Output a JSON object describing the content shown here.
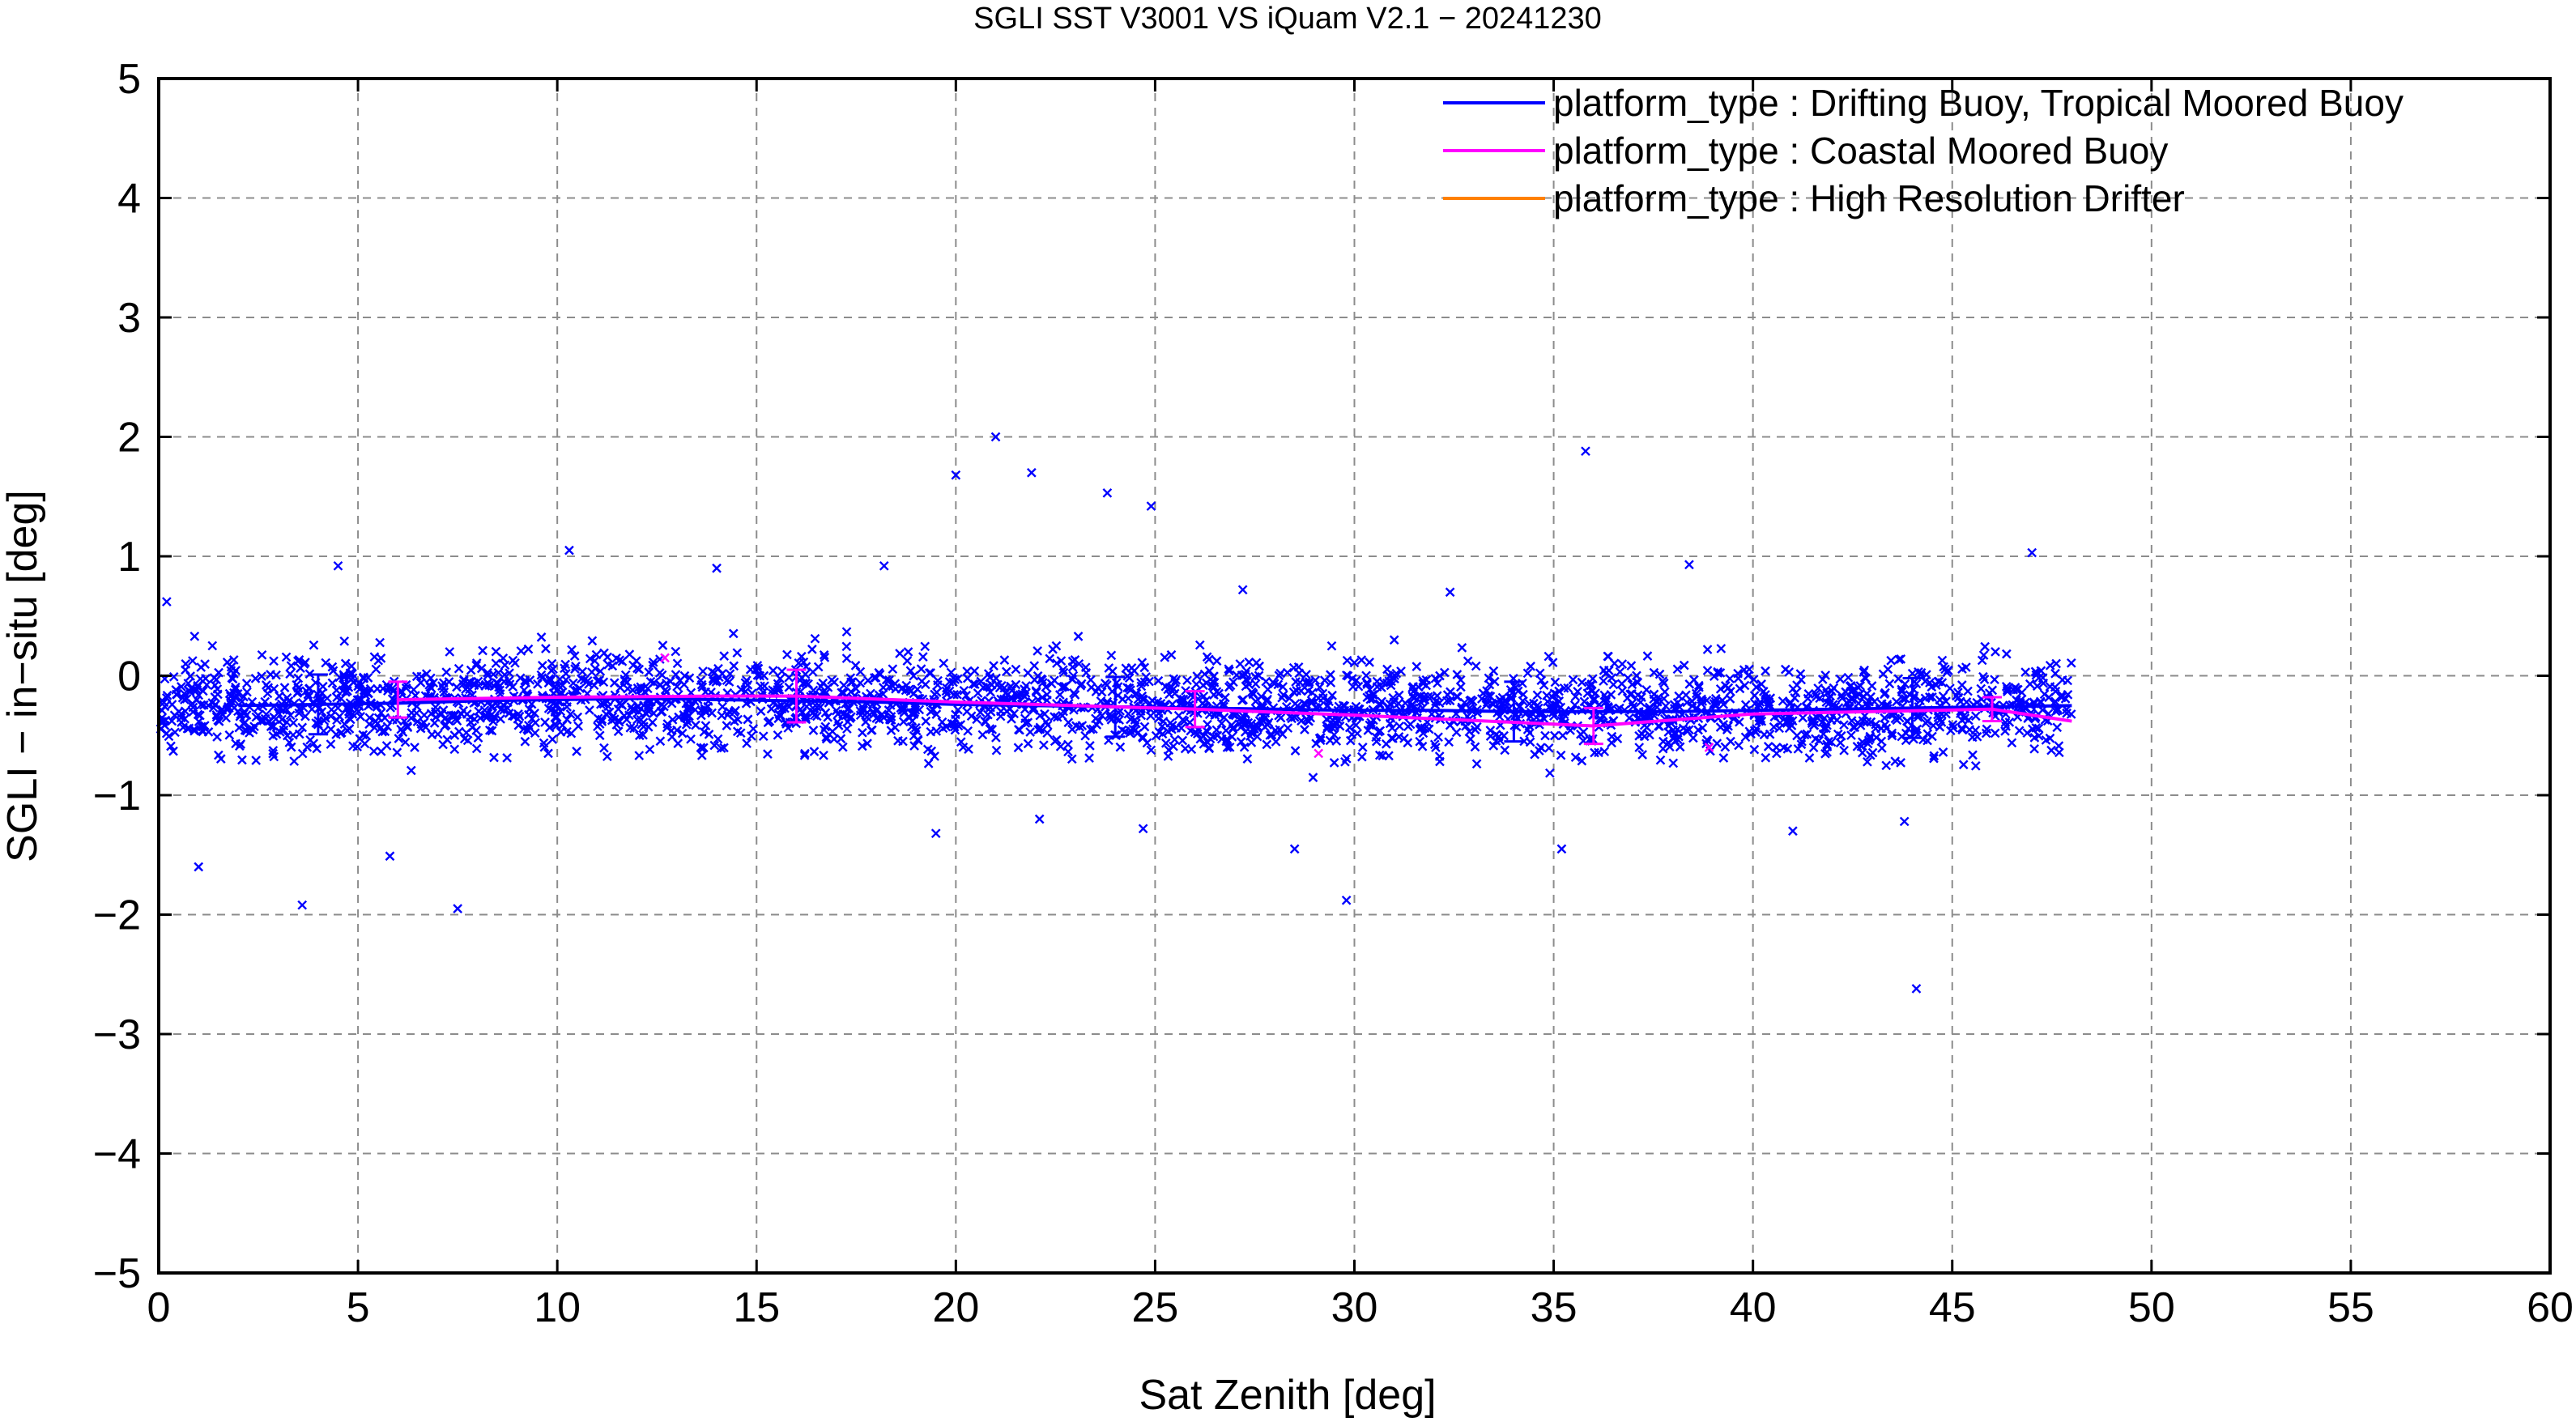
{
  "chart_data": {
    "type": "scatter",
    "title": "SGLI SST V3001 VS iQuam V2.1  − 20241230",
    "xlabel": "Sat Zenith [deg]",
    "ylabel": "SGLI − in−situ [deg]",
    "xlim": [
      0,
      60
    ],
    "ylim": [
      -5,
      5
    ],
    "xticks": [
      0,
      5,
      10,
      15,
      20,
      25,
      30,
      35,
      40,
      45,
      50,
      55,
      60
    ],
    "yticks": [
      -5,
      -4,
      -3,
      -2,
      -1,
      0,
      1,
      2,
      3,
      4,
      5
    ],
    "ytick_labels": [
      "−5",
      "−4",
      "−3",
      "−2",
      "−1",
      "0",
      "1",
      "2",
      "3",
      "4",
      "5"
    ],
    "grid": true,
    "legend_position": "top-right",
    "legend": [
      {
        "label": "platform_type : Drifting Buoy, Tropical Moored Buoy",
        "color": "#0000ff"
      },
      {
        "label": "platform_type : Coastal Moored Buoy",
        "color": "#ff00ff"
      },
      {
        "label": "platform_type : High Resolution Drifter",
        "color": "#ff8000"
      }
    ],
    "scatter_cloud": {
      "series": "platform_type : Drifting Buoy, Tropical Moored Buoy",
      "marker": "x",
      "color": "#0000ff",
      "x_range": [
        0,
        48
      ],
      "typical_y_range": [
        -0.8,
        0.4
      ],
      "approx_count": 2800
    },
    "series": [
      {
        "name": "platform_type : Drifting Buoy, Tropical Moored Buoy",
        "color": "#0000ff",
        "x": [
          2,
          4,
          6,
          8,
          10,
          12,
          14,
          16,
          18,
          20,
          22,
          24,
          26,
          28,
          30,
          32,
          34,
          36,
          38,
          40,
          42,
          44,
          46,
          48
        ],
        "y": [
          -0.25,
          -0.24,
          -0.23,
          -0.21,
          -0.2,
          -0.19,
          -0.2,
          -0.21,
          -0.22,
          -0.24,
          -0.25,
          -0.26,
          -0.27,
          -0.28,
          -0.29,
          -0.29,
          -0.3,
          -0.3,
          -0.3,
          -0.29,
          -0.28,
          -0.27,
          -0.26,
          -0.25
        ],
        "error_bars": [
          {
            "x": 4,
            "y": -0.24,
            "err": 0.25
          },
          {
            "x": 24,
            "y": -0.26,
            "err": 0.25
          },
          {
            "x": 34,
            "y": -0.3,
            "err": 0.25
          },
          {
            "x": 44,
            "y": -0.27,
            "err": 0.25
          }
        ]
      },
      {
        "name": "platform_type : Coastal Moored Buoy",
        "color": "#ff00ff",
        "x": [
          6,
          10,
          14,
          16,
          20,
          26,
          30,
          36,
          40,
          46,
          48
        ],
        "y": [
          -0.2,
          -0.18,
          -0.17,
          -0.17,
          -0.22,
          -0.28,
          -0.33,
          -0.42,
          -0.32,
          -0.28,
          -0.38
        ],
        "error_bars": [
          {
            "x": 6,
            "y": -0.2,
            "err": 0.15
          },
          {
            "x": 16,
            "y": -0.17,
            "err": 0.22
          },
          {
            "x": 26,
            "y": -0.28,
            "err": 0.15
          },
          {
            "x": 36,
            "y": -0.42,
            "err": 0.15
          },
          {
            "x": 46,
            "y": -0.28,
            "err": 0.1
          }
        ],
        "points": [
          {
            "x": 12.7,
            "y": 0.15
          },
          {
            "x": 29.1,
            "y": -0.65
          },
          {
            "x": 38.9,
            "y": -0.6
          }
        ]
      },
      {
        "name": "platform_type : High Resolution Drifter",
        "color": "#ff8000",
        "x": [],
        "y": []
      }
    ],
    "outliers": [
      {
        "x": 0.2,
        "y": 0.62
      },
      {
        "x": 0.9,
        "y": 0.33
      },
      {
        "x": 1.0,
        "y": -1.6
      },
      {
        "x": 3.6,
        "y": -1.92
      },
      {
        "x": 4.5,
        "y": 0.92
      },
      {
        "x": 5.8,
        "y": -1.51
      },
      {
        "x": 7.5,
        "y": -1.95
      },
      {
        "x": 10.3,
        "y": 1.05
      },
      {
        "x": 14.0,
        "y": 0.9
      },
      {
        "x": 18.2,
        "y": 0.92
      },
      {
        "x": 19.5,
        "y": -1.32
      },
      {
        "x": 20.0,
        "y": 1.68
      },
      {
        "x": 21.0,
        "y": 2.0
      },
      {
        "x": 21.9,
        "y": 1.7
      },
      {
        "x": 22.1,
        "y": -1.2
      },
      {
        "x": 23.8,
        "y": 1.53
      },
      {
        "x": 24.7,
        "y": -1.28
      },
      {
        "x": 24.9,
        "y": 1.42
      },
      {
        "x": 28.5,
        "y": -1.45
      },
      {
        "x": 29.8,
        "y": -1.88
      },
      {
        "x": 35.8,
        "y": 1.88
      },
      {
        "x": 35.2,
        "y": -1.45
      },
      {
        "x": 41.0,
        "y": -1.3
      },
      {
        "x": 43.8,
        "y": -1.22
      },
      {
        "x": 44.1,
        "y": -2.62
      },
      {
        "x": 47.0,
        "y": 1.03
      },
      {
        "x": 38.4,
        "y": 0.93
      },
      {
        "x": 32.4,
        "y": 0.7
      },
      {
        "x": 27.2,
        "y": 0.72
      },
      {
        "x": 31.0,
        "y": 0.3
      }
    ]
  }
}
